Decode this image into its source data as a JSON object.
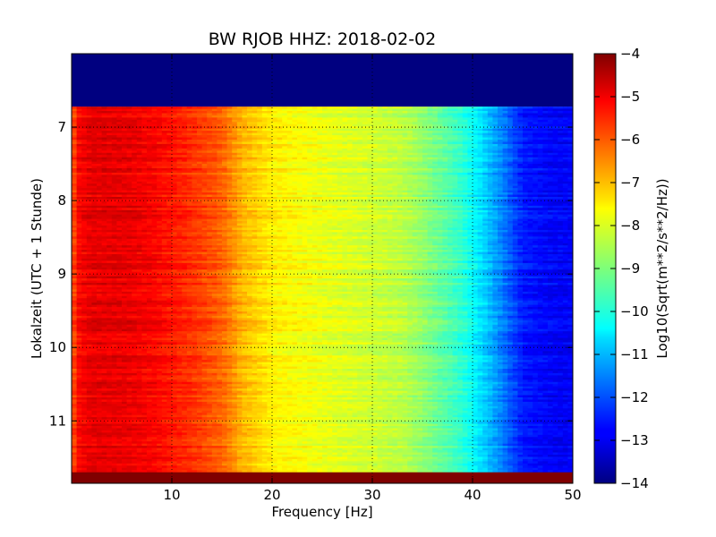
{
  "chart_data": {
    "type": "heatmap",
    "title": "BW RJOB HHZ: 2018-02-02",
    "xlabel": "Frequency [Hz]",
    "ylabel": "Lokalzeit (UTC + 1 Stunde)",
    "xlim": [
      0,
      50
    ],
    "ylim": [
      11.85,
      6.0
    ],
    "x_ticks": [
      10,
      20,
      30,
      40,
      50
    ],
    "y_ticks": [
      7,
      8,
      9,
      10,
      11
    ],
    "grid": true,
    "colormap": "jet",
    "colorbar": {
      "label": "Log10(Sqrt(m**2/s**2/Hz))",
      "range": [
        -14,
        -4
      ],
      "ticks": [
        -4,
        -5,
        -6,
        -7,
        -8,
        -9,
        -10,
        -11,
        -12,
        -13,
        -14
      ]
    },
    "time_range": [
      6.0,
      11.85
    ],
    "no_data_bands": [
      {
        "from": 6.0,
        "to": 6.72,
        "value": -14
      },
      {
        "from": 11.7,
        "to": 11.85,
        "value": -4
      }
    ],
    "frequency_profile": {
      "frequency": [
        0,
        0.5,
        2,
        5,
        8,
        12,
        15,
        17,
        20,
        23,
        26,
        30,
        33,
        35,
        37,
        39,
        41,
        43,
        45,
        48,
        50
      ],
      "value": [
        -6.4,
        -5.3,
        -5.0,
        -5.0,
        -5.2,
        -5.7,
        -6.2,
        -7.0,
        -7.6,
        -7.8,
        -8.0,
        -8.2,
        -8.4,
        -8.8,
        -9.3,
        -9.8,
        -10.6,
        -11.5,
        -12.5,
        -12.8,
        -12.8
      ]
    }
  }
}
